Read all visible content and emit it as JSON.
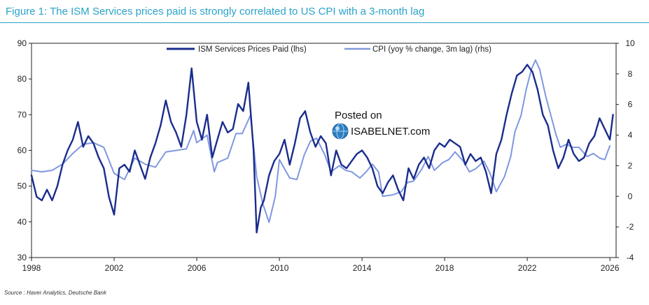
{
  "colors": {
    "title": "#2aa3c9",
    "ism": "#1a2d8c",
    "cpi": "#7f98e0",
    "axis": "#222222"
  },
  "watermark": {
    "line1": "Posted on",
    "line2": "ISABELNET.com",
    "icon": "globe-icon"
  },
  "chart_data": {
    "type": "line",
    "title": "Figure 1: The ISM Services prices paid is strongly correlated to US CPI with a 3-month lag",
    "source": "Source : Haver Analytics, Deutsche Bank",
    "xlim": [
      1998,
      2026.3
    ],
    "x_ticks": [
      1998,
      2002,
      2006,
      2010,
      2014,
      2018,
      2022,
      2026
    ],
    "ylim_left": [
      30,
      90
    ],
    "y_ticks_left": [
      30,
      40,
      50,
      60,
      70,
      80,
      90
    ],
    "ylim_right": [
      -4,
      10
    ],
    "y_ticks_right": [
      -4,
      -2,
      0,
      2,
      4,
      6,
      8,
      10
    ],
    "grid": false,
    "legend_position": "top",
    "series": [
      {
        "name": "ISM Services Prices Paid (lhs)",
        "axis": "left",
        "points": [
          [
            1998.0,
            53
          ],
          [
            1998.25,
            47
          ],
          [
            1998.5,
            46
          ],
          [
            1998.75,
            49
          ],
          [
            1999.0,
            46
          ],
          [
            1999.25,
            50
          ],
          [
            1999.5,
            56
          ],
          [
            1999.75,
            60
          ],
          [
            2000.0,
            63
          ],
          [
            2000.25,
            68
          ],
          [
            2000.5,
            61
          ],
          [
            2000.75,
            64
          ],
          [
            2001.0,
            62
          ],
          [
            2001.25,
            58
          ],
          [
            2001.5,
            55
          ],
          [
            2001.75,
            47
          ],
          [
            2002.0,
            42
          ],
          [
            2002.25,
            55
          ],
          [
            2002.5,
            56
          ],
          [
            2002.75,
            54
          ],
          [
            2003.0,
            60
          ],
          [
            2003.25,
            56
          ],
          [
            2003.5,
            52
          ],
          [
            2003.75,
            58
          ],
          [
            2004.0,
            62
          ],
          [
            2004.25,
            67
          ],
          [
            2004.5,
            74
          ],
          [
            2004.75,
            68
          ],
          [
            2005.0,
            65
          ],
          [
            2005.25,
            61
          ],
          [
            2005.5,
            70
          ],
          [
            2005.75,
            83
          ],
          [
            2006.0,
            68
          ],
          [
            2006.25,
            63
          ],
          [
            2006.5,
            70
          ],
          [
            2006.75,
            58
          ],
          [
            2007.0,
            63
          ],
          [
            2007.25,
            68
          ],
          [
            2007.5,
            65
          ],
          [
            2007.75,
            66
          ],
          [
            2008.0,
            73
          ],
          [
            2008.25,
            71
          ],
          [
            2008.5,
            79
          ],
          [
            2008.75,
            60
          ],
          [
            2008.9,
            37
          ],
          [
            2009.1,
            44
          ],
          [
            2009.25,
            46
          ],
          [
            2009.5,
            53
          ],
          [
            2009.75,
            57
          ],
          [
            2010.0,
            59
          ],
          [
            2010.25,
            63
          ],
          [
            2010.5,
            56
          ],
          [
            2010.75,
            62
          ],
          [
            2011.0,
            69
          ],
          [
            2011.25,
            71
          ],
          [
            2011.5,
            65
          ],
          [
            2011.75,
            61
          ],
          [
            2012.0,
            64
          ],
          [
            2012.25,
            62
          ],
          [
            2012.5,
            53
          ],
          [
            2012.75,
            60
          ],
          [
            2013.0,
            56
          ],
          [
            2013.25,
            55
          ],
          [
            2013.5,
            57
          ],
          [
            2013.75,
            59
          ],
          [
            2014.0,
            60
          ],
          [
            2014.25,
            58
          ],
          [
            2014.5,
            55
          ],
          [
            2014.75,
            50
          ],
          [
            2015.0,
            48
          ],
          [
            2015.25,
            51
          ],
          [
            2015.5,
            53
          ],
          [
            2015.75,
            49
          ],
          [
            2016.0,
            46
          ],
          [
            2016.25,
            55
          ],
          [
            2016.5,
            52
          ],
          [
            2016.75,
            56
          ],
          [
            2017.0,
            58
          ],
          [
            2017.25,
            55
          ],
          [
            2017.5,
            60
          ],
          [
            2017.75,
            62
          ],
          [
            2018.0,
            61
          ],
          [
            2018.25,
            63
          ],
          [
            2018.5,
            62
          ],
          [
            2018.75,
            61
          ],
          [
            2019.0,
            56
          ],
          [
            2019.25,
            59
          ],
          [
            2019.5,
            57
          ],
          [
            2019.75,
            58
          ],
          [
            2020.0,
            54
          ],
          [
            2020.25,
            48
          ],
          [
            2020.5,
            59
          ],
          [
            2020.75,
            63
          ],
          [
            2021.0,
            70
          ],
          [
            2021.25,
            76
          ],
          [
            2021.5,
            81
          ],
          [
            2021.75,
            82
          ],
          [
            2022.0,
            84
          ],
          [
            2022.25,
            82
          ],
          [
            2022.5,
            77
          ],
          [
            2022.75,
            70
          ],
          [
            2023.0,
            67
          ],
          [
            2023.25,
            60
          ],
          [
            2023.5,
            55
          ],
          [
            2023.75,
            58
          ],
          [
            2024.0,
            63
          ],
          [
            2024.25,
            59
          ],
          [
            2024.5,
            57
          ],
          [
            2024.75,
            58
          ],
          [
            2025.0,
            62
          ],
          [
            2025.25,
            64
          ],
          [
            2025.5,
            69
          ],
          [
            2025.75,
            66
          ],
          [
            2026.0,
            63
          ],
          [
            2026.15,
            70
          ]
        ]
      },
      {
        "name": "CPI (yoy % change, 3m lag) (rhs)",
        "axis": "right",
        "points": [
          [
            1998.0,
            1.7
          ],
          [
            1998.5,
            1.6
          ],
          [
            1999.0,
            1.7
          ],
          [
            1999.5,
            2.1
          ],
          [
            2000.0,
            2.8
          ],
          [
            2000.5,
            3.4
          ],
          [
            2001.0,
            3.5
          ],
          [
            2001.5,
            3.2
          ],
          [
            2002.0,
            1.5
          ],
          [
            2002.5,
            1.1
          ],
          [
            2003.0,
            2.5
          ],
          [
            2003.5,
            2.1
          ],
          [
            2004.0,
            1.9
          ],
          [
            2004.5,
            2.9
          ],
          [
            2005.0,
            3.0
          ],
          [
            2005.5,
            3.1
          ],
          [
            2005.85,
            4.3
          ],
          [
            2006.0,
            3.5
          ],
          [
            2006.5,
            4.0
          ],
          [
            2006.85,
            1.6
          ],
          [
            2007.0,
            2.2
          ],
          [
            2007.5,
            2.5
          ],
          [
            2007.9,
            4.1
          ],
          [
            2008.2,
            4.1
          ],
          [
            2008.6,
            5.3
          ],
          [
            2008.9,
            1.3
          ],
          [
            2009.2,
            -0.5
          ],
          [
            2009.5,
            -1.7
          ],
          [
            2009.8,
            0.0
          ],
          [
            2010.0,
            2.4
          ],
          [
            2010.5,
            1.2
          ],
          [
            2010.85,
            1.1
          ],
          [
            2011.2,
            2.7
          ],
          [
            2011.5,
            3.6
          ],
          [
            2011.8,
            3.8
          ],
          [
            2012.2,
            2.7
          ],
          [
            2012.5,
            1.6
          ],
          [
            2012.9,
            2.0
          ],
          [
            2013.2,
            1.7
          ],
          [
            2013.5,
            1.6
          ],
          [
            2013.9,
            1.2
          ],
          [
            2014.2,
            1.6
          ],
          [
            2014.5,
            2.1
          ],
          [
            2014.8,
            1.6
          ],
          [
            2015.0,
            0.0
          ],
          [
            2015.5,
            0.1
          ],
          [
            2015.9,
            0.3
          ],
          [
            2016.2,
            0.9
          ],
          [
            2016.5,
            1.0
          ],
          [
            2016.9,
            1.8
          ],
          [
            2017.2,
            2.6
          ],
          [
            2017.5,
            1.7
          ],
          [
            2017.9,
            2.2
          ],
          [
            2018.2,
            2.4
          ],
          [
            2018.5,
            2.9
          ],
          [
            2018.9,
            2.3
          ],
          [
            2019.2,
            1.6
          ],
          [
            2019.5,
            1.8
          ],
          [
            2019.9,
            2.3
          ],
          [
            2020.2,
            1.5
          ],
          [
            2020.5,
            0.3
          ],
          [
            2020.9,
            1.3
          ],
          [
            2021.2,
            2.6
          ],
          [
            2021.4,
            4.2
          ],
          [
            2021.7,
            5.3
          ],
          [
            2021.95,
            7.0
          ],
          [
            2022.2,
            8.3
          ],
          [
            2022.4,
            8.9
          ],
          [
            2022.6,
            8.3
          ],
          [
            2022.9,
            6.5
          ],
          [
            2023.2,
            5.0
          ],
          [
            2023.4,
            4.0
          ],
          [
            2023.6,
            3.2
          ],
          [
            2023.9,
            3.4
          ],
          [
            2024.2,
            3.2
          ],
          [
            2024.5,
            3.2
          ],
          [
            2024.9,
            2.6
          ],
          [
            2025.2,
            2.8
          ],
          [
            2025.5,
            2.5
          ],
          [
            2025.75,
            2.4
          ],
          [
            2026.0,
            3.3
          ]
        ]
      }
    ]
  }
}
